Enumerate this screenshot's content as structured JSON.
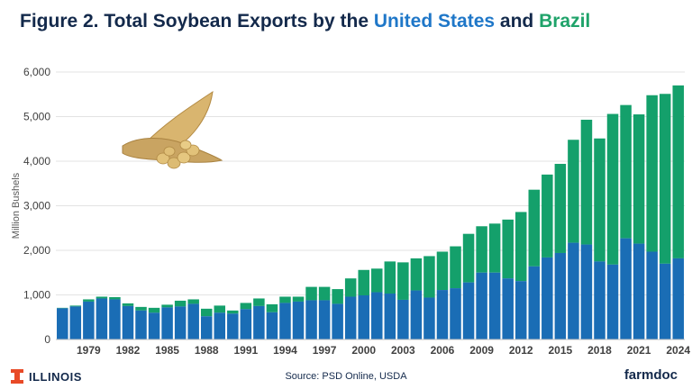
{
  "header": {
    "title_prefix": "Figure 2. Total Soybean Exports by the ",
    "title_us": "United States",
    "title_and": " and ",
    "title_brazil": "Brazil"
  },
  "footer": {
    "source": "Source: PSD Online, USDA",
    "logo_left": "ILLINOIS",
    "logo_right": "farmdoc"
  },
  "colors": {
    "us": "#1a6db5",
    "brazil": "#14a06b",
    "title": "#13294b"
  },
  "chart_data": {
    "type": "bar",
    "stacked": true,
    "ylabel": "Million Bushels",
    "ylim": [
      0,
      6000
    ],
    "yticks": [
      0,
      1000,
      2000,
      3000,
      4000,
      5000,
      6000
    ],
    "ytick_labels": [
      "0",
      "1,000",
      "2,000",
      "3,000",
      "4,000",
      "5,000",
      "6,000"
    ],
    "grid": true,
    "x": [
      1977,
      1978,
      1979,
      1980,
      1981,
      1982,
      1983,
      1984,
      1985,
      1986,
      1987,
      1988,
      1989,
      1990,
      1991,
      1992,
      1993,
      1994,
      1995,
      1996,
      1997,
      1998,
      1999,
      2000,
      2001,
      2002,
      2003,
      2004,
      2005,
      2006,
      2007,
      2008,
      2009,
      2010,
      2011,
      2012,
      2013,
      2014,
      2015,
      2016,
      2017,
      2018,
      2019,
      2020,
      2021,
      2022,
      2023,
      2024
    ],
    "xtick_labels": [
      "1979",
      "1982",
      "1985",
      "1988",
      "1991",
      "1994",
      "1997",
      "2000",
      "2003",
      "2006",
      "2009",
      "2012",
      "2015",
      "2018",
      "2021",
      "2024"
    ],
    "series": [
      {
        "key": "us",
        "values": [
          700,
          740,
          850,
          920,
          900,
          750,
          650,
          600,
          720,
          740,
          800,
          520,
          600,
          580,
          680,
          750,
          610,
          820,
          850,
          880,
          880,
          800,
          960,
          990,
          1060,
          1030,
          890,
          1100,
          940,
          1110,
          1150,
          1280,
          1500,
          1500,
          1370,
          1310,
          1640,
          1840,
          1940,
          2170,
          2130,
          1750,
          1680,
          2270,
          2150,
          1970,
          1700,
          1820
        ]
      },
      {
        "key": "brazil",
        "values": [
          10,
          20,
          50,
          40,
          50,
          60,
          80,
          110,
          60,
          130,
          100,
          170,
          160,
          70,
          140,
          170,
          180,
          140,
          110,
          300,
          300,
          330,
          410,
          570,
          530,
          720,
          840,
          720,
          930,
          860,
          940,
          1090,
          1040,
          1100,
          1320,
          1550,
          1720,
          1860,
          2000,
          2310,
          2800,
          2760,
          3380,
          2990,
          2900,
          3510,
          3810,
          3880
        ]
      }
    ]
  }
}
